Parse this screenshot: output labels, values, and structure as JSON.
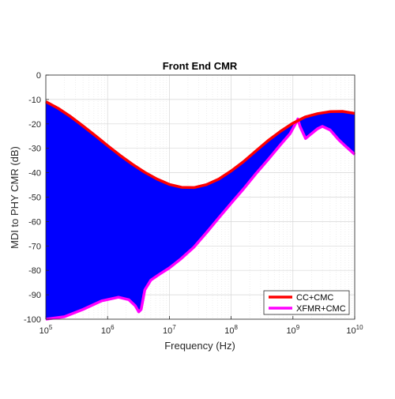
{
  "chart_data": {
    "type": "line",
    "title": "Front End CMR",
    "xlabel": "Frequency (Hz)",
    "ylabel": "MDI to PHY CMR (dB)",
    "xscale": "log",
    "xlim": [
      100000,
      10000000000
    ],
    "ylim": [
      -100,
      0
    ],
    "grid": true,
    "fill_between_series": true,
    "fill_color": "#0000ff",
    "legend_position": "bottom-right",
    "x_ticks": [
      {
        "value": 100000,
        "base": "10",
        "exp": "5"
      },
      {
        "value": 1000000,
        "base": "10",
        "exp": "6"
      },
      {
        "value": 10000000,
        "base": "10",
        "exp": "7"
      },
      {
        "value": 100000000,
        "base": "10",
        "exp": "8"
      },
      {
        "value": 1000000000,
        "base": "10",
        "exp": "9"
      },
      {
        "value": 10000000000,
        "base": "10",
        "exp": "10"
      }
    ],
    "y_ticks": [
      {
        "value": 0,
        "label": "0"
      },
      {
        "value": -10,
        "label": "-10"
      },
      {
        "value": -20,
        "label": "-20"
      },
      {
        "value": -30,
        "label": "-30"
      },
      {
        "value": -40,
        "label": "-40"
      },
      {
        "value": -50,
        "label": "-50"
      },
      {
        "value": -60,
        "label": "-60"
      },
      {
        "value": -70,
        "label": "-70"
      },
      {
        "value": -80,
        "label": "-80"
      },
      {
        "value": -90,
        "label": "-90"
      },
      {
        "value": -100,
        "label": "-100"
      }
    ],
    "series": [
      {
        "name": "CC+CMC",
        "color": "#ff0000",
        "x": [
          100000,
          158000,
          251000,
          398000,
          631000,
          1000000,
          1580000,
          2510000,
          3980000,
          6310000,
          10000000,
          15800000,
          25100000,
          39800000,
          63100000,
          100000000,
          158000000,
          251000000,
          398000000,
          631000000,
          1000000000,
          1580000000,
          2510000000,
          3980000000,
          6310000000,
          10000000000
        ],
        "y": [
          -10.9,
          -13.6,
          -17.0,
          -20.8,
          -24.8,
          -28.9,
          -32.8,
          -36.5,
          -39.8,
          -42.6,
          -44.8,
          -46.0,
          -46.1,
          -44.9,
          -42.6,
          -39.3,
          -35.5,
          -31.1,
          -26.8,
          -23.0,
          -19.7,
          -17.2,
          -15.8,
          -15.0,
          -14.9,
          -15.7
        ]
      },
      {
        "name": "XFMR+CMC",
        "color": "#ff00ff",
        "x": [
          100000,
          200000,
          400000,
          800000,
          1500000,
          2200000,
          2800000,
          3200000,
          3500000,
          4000000,
          5000000,
          7000000,
          10000000,
          15000000,
          25000000,
          40000000,
          63000000,
          100000000,
          160000000,
          250000000,
          400000000,
          630000000,
          900000000,
          1100000000,
          1200000000,
          1300000000,
          1600000000,
          2000000000,
          2500000000,
          3000000000,
          4000000000,
          5500000000,
          7000000000,
          10000000000
        ],
        "y": [
          -100.0,
          -99.0,
          -96.0,
          -92.5,
          -91.0,
          -92.0,
          -94.5,
          -97.0,
          -96.0,
          -88.0,
          -84.0,
          -81.5,
          -79.0,
          -75.5,
          -70.5,
          -64.5,
          -58.5,
          -52.5,
          -46.5,
          -40.5,
          -34.5,
          -28.5,
          -24.0,
          -20.0,
          -18.0,
          -21.0,
          -26.0,
          -24.0,
          -22.0,
          -21.0,
          -22.5,
          -26.5,
          -29.0,
          -32.5
        ]
      }
    ]
  }
}
